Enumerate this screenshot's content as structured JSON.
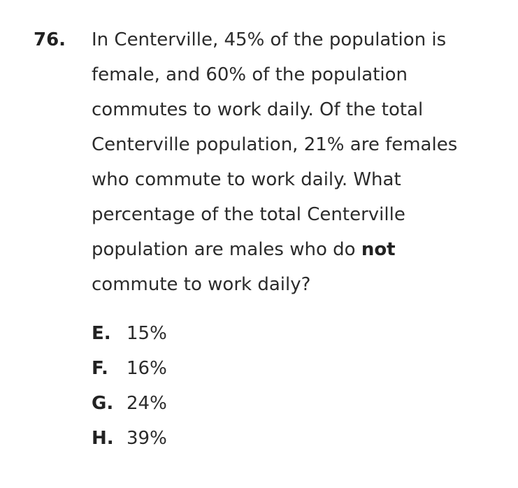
{
  "question": {
    "number": "76.",
    "lines": [
      "In Centerville, 45% of the population is",
      "female, and 60% of the population",
      "commutes to work daily. Of the total",
      "Centerville population, 21% are females",
      "who commute to work daily. What",
      "percentage of the total Centerville"
    ],
    "line7_before": "population are males who do ",
    "line7_bold": "not",
    "line8": "commute to work daily?"
  },
  "choices": [
    {
      "letter": "E.",
      "text": "15%"
    },
    {
      "letter": "F.",
      "text": "16%"
    },
    {
      "letter": "G.",
      "text": "24%"
    },
    {
      "letter": "H.",
      "text": "39%"
    }
  ]
}
